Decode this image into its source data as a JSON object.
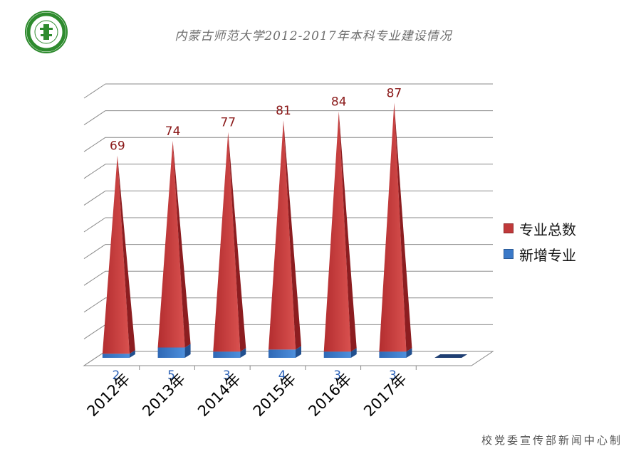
{
  "title": "内蒙古师范大学2012-2017年本科专业建设情况",
  "credit": "校党委宣传部新闻中心制",
  "colors": {
    "total": "#c0393a",
    "new": "#3a79c8",
    "grid": "#8a8a8a",
    "title": "#6e6e6e",
    "seal": "#2e8b2e"
  },
  "chart_data": {
    "type": "bar",
    "style": "3d-pyramid",
    "categories": [
      "2012年",
      "2013年",
      "2014年",
      "2015年",
      "2016年",
      "2017年",
      ""
    ],
    "series": [
      {
        "name": "新增专业",
        "values": [
          2,
          5,
          3,
          4,
          3,
          3,
          0
        ],
        "color": "#3a79c8"
      },
      {
        "name": "专业总数",
        "values": [
          69,
          74,
          77,
          81,
          84,
          87,
          null
        ],
        "color": "#c0393a"
      }
    ],
    "stacked": true,
    "data_labels": {
      "total": [
        "69",
        "74",
        "77",
        "81",
        "84",
        "87"
      ],
      "new": [
        "2",
        "5",
        "3",
        "4",
        "3",
        "3"
      ]
    },
    "legend": {
      "position": "right",
      "entries": [
        "专业总数",
        "新增专业"
      ]
    },
    "grid": true,
    "y_axis_labels_shown": false
  }
}
